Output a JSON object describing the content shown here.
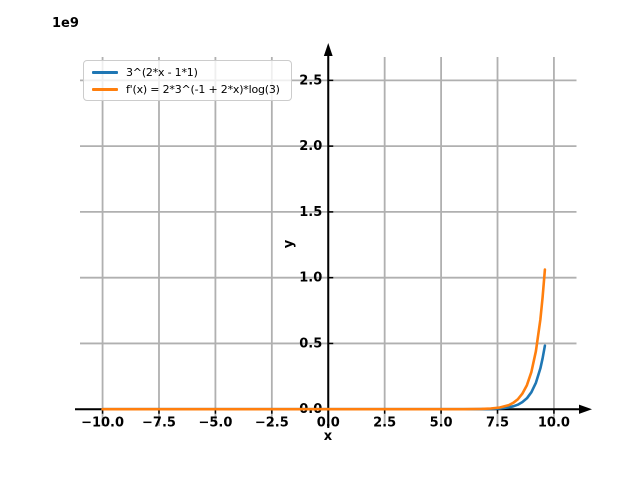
{
  "figure": {
    "offset_text": "1e9",
    "xlabel": "x",
    "ylabel": "y"
  },
  "legend": {
    "position": "upper left",
    "entries": [
      {
        "label": "3^(2*x - 1*1)",
        "color": "#1f77b4"
      },
      {
        "label": "f'(x) = 2*3^(-1 + 2*x)*log(3)",
        "color": "#ff7f0e"
      }
    ]
  },
  "chart_data": {
    "type": "line",
    "title": "",
    "xlabel": "x",
    "ylabel": "y",
    "y_scale_offset_text": "1e9",
    "xlim": [
      -11,
      11
    ],
    "ylim_1e9": [
      -0.1275,
      2.6775
    ],
    "xticks": [
      -10,
      -7.5,
      -5,
      -2.5,
      0,
      2.5,
      5,
      7.5,
      10
    ],
    "xtick_labels": [
      "−10.0",
      "−7.5",
      "−5.0",
      "−2.5",
      "0.0",
      "2.5",
      "5.0",
      "7.5",
      "10.0"
    ],
    "yticks_1e9": [
      0,
      0.5,
      1,
      1.5,
      2,
      2.5
    ],
    "ytick_labels": [
      "0.0",
      "0.5",
      "1.0",
      "1.5",
      "2.0",
      "2.5"
    ],
    "grid": true,
    "grid_color": "#b0b0b0",
    "axis_color": "#000000",
    "legend_position": "upper left",
    "series": [
      {
        "name": "3^(2*x - 1*1)",
        "color": "#1f77b4",
        "points_x_y1e9": [
          [
            -10,
            0
          ],
          [
            -8,
            0
          ],
          [
            -6,
            0
          ],
          [
            -4,
            0
          ],
          [
            -2,
            0
          ],
          [
            0,
            0
          ],
          [
            2,
            0
          ],
          [
            3,
            0
          ],
          [
            4,
            1e-06
          ],
          [
            5,
            2e-05
          ],
          [
            5.5,
            6e-05
          ],
          [
            6,
            0.00018
          ],
          [
            6.4,
            0.00043
          ],
          [
            6.8,
            0.00103
          ],
          [
            7.2,
            0.00247
          ],
          [
            7.6,
            0.00595
          ],
          [
            8,
            0.01435
          ],
          [
            8.2,
            0.0223
          ],
          [
            8.4,
            0.0345
          ],
          [
            8.6,
            0.0538
          ],
          [
            8.8,
            0.0832
          ],
          [
            9,
            0.12914
          ],
          [
            9.2,
            0.2008
          ],
          [
            9.4,
            0.311
          ],
          [
            9.5,
            0.38742
          ],
          [
            9.6,
            0.4831
          ]
        ]
      },
      {
        "name": "f'(x) = 2*3^(-1 + 2*x)*log(3)",
        "color": "#ff7f0e",
        "points_x_y1e9": [
          [
            -10,
            0
          ],
          [
            -8,
            0
          ],
          [
            -6,
            0
          ],
          [
            -4,
            0
          ],
          [
            -2,
            0
          ],
          [
            0,
            0
          ],
          [
            2,
            0
          ],
          [
            3,
            0
          ],
          [
            4,
            2e-06
          ],
          [
            5,
            4e-05
          ],
          [
            5.5,
            0.00013
          ],
          [
            6,
            0.00039
          ],
          [
            6.4,
            0.00094
          ],
          [
            6.8,
            0.00226
          ],
          [
            7.2,
            0.00543
          ],
          [
            7.6,
            0.01307
          ],
          [
            8,
            0.03153
          ],
          [
            8.2,
            0.049
          ],
          [
            8.4,
            0.07581
          ],
          [
            8.6,
            0.11822
          ],
          [
            8.8,
            0.18281
          ],
          [
            9,
            0.28375
          ],
          [
            9.2,
            0.4412
          ],
          [
            9.4,
            0.68335
          ],
          [
            9.5,
            0.85125
          ],
          [
            9.6,
            1.06148
          ]
        ]
      }
    ]
  }
}
